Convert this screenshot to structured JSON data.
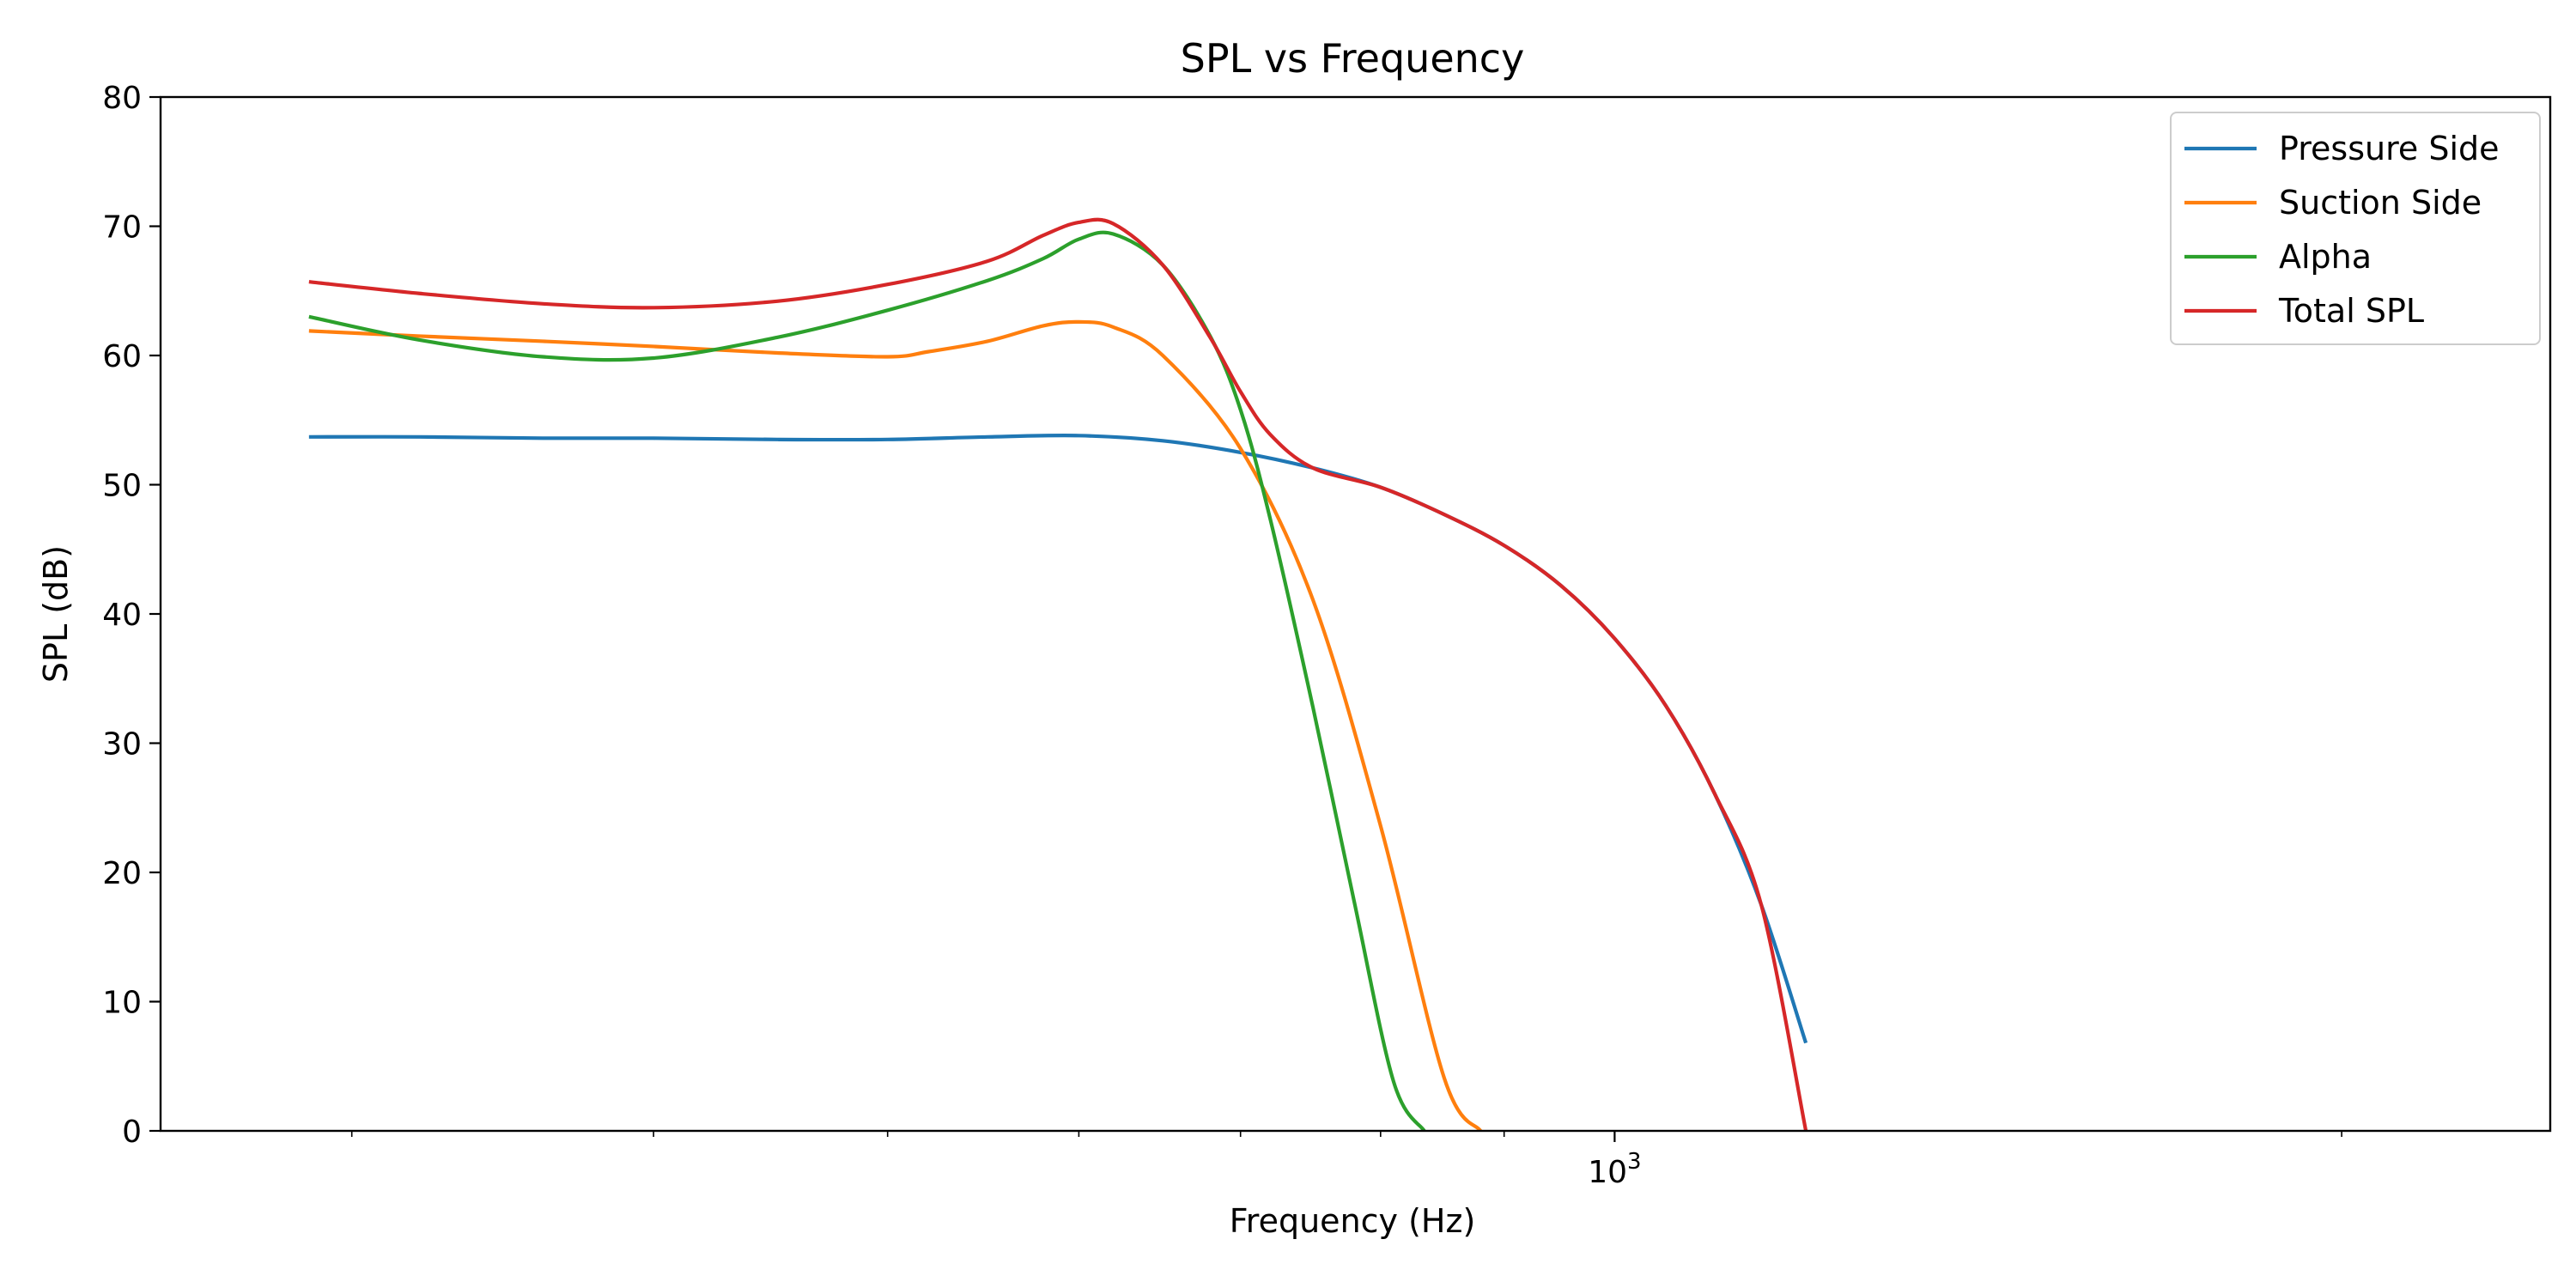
{
  "chart_data": {
    "type": "line",
    "title": "SPL vs Frequency",
    "xlabel": "Frequency (Hz)",
    "ylabel": "SPL (dB)",
    "x_scale": "log",
    "xlim": [
      250,
      2440
    ],
    "ylim": [
      0,
      80
    ],
    "grid": false,
    "legend_position": "top-right",
    "y_ticks": [
      0,
      10,
      20,
      30,
      40,
      50,
      60,
      70,
      80
    ],
    "x_tick_labels": [
      {
        "value": 1000,
        "base": "10",
        "exponent": "3"
      }
    ],
    "series": [
      {
        "name": "Pressure Side",
        "color": "#1f77b4",
        "x": [
          288,
          320,
          360,
          400,
          450,
          500,
          550,
          600,
          650,
          700,
          750,
          800,
          850,
          900,
          950,
          1000,
          1050,
          1100,
          1150,
          1200
        ],
        "values": [
          53.7,
          53.7,
          53.6,
          53.6,
          53.5,
          53.5,
          53.7,
          53.8,
          53.4,
          52.5,
          51.3,
          49.8,
          47.7,
          45.3,
          42.2,
          38.1,
          32.9,
          26.1,
          17.5,
          6.8
        ]
      },
      {
        "name": "Suction Side",
        "color": "#ff7f0e",
        "x": [
          288,
          320,
          360,
          400,
          450,
          500,
          520,
          550,
          580,
          600,
          620,
          650,
          700,
          750,
          800,
          850,
          880
        ],
        "values": [
          61.9,
          61.5,
          61.1,
          60.7,
          60.2,
          59.9,
          60.3,
          61.1,
          62.3,
          62.6,
          62.2,
          60.0,
          52.8,
          41.1,
          23.6,
          4.1,
          0
        ]
      },
      {
        "name": "Alpha",
        "color": "#2ca02c",
        "x": [
          288,
          320,
          360,
          400,
          450,
          500,
          550,
          580,
          600,
          620,
          650,
          680,
          700,
          720,
          750,
          780,
          810,
          834
        ],
        "values": [
          63.0,
          61.2,
          59.9,
          59.8,
          61.4,
          63.5,
          65.8,
          67.5,
          69.0,
          69.4,
          67.0,
          61.5,
          55.8,
          47.4,
          32.8,
          17.8,
          3.8,
          0
        ]
      },
      {
        "name": "Total SPL",
        "color": "#d62728",
        "x": [
          288,
          320,
          360,
          400,
          450,
          500,
          550,
          580,
          600,
          620,
          650,
          680,
          700,
          720,
          750,
          800,
          850,
          900,
          950,
          1000,
          1050,
          1100,
          1150,
          1200
        ],
        "values": [
          65.7,
          64.8,
          64.0,
          63.7,
          64.2,
          65.5,
          67.3,
          69.3,
          70.3,
          70.2,
          67.0,
          61.4,
          57.2,
          53.9,
          51.3,
          49.8,
          47.7,
          45.3,
          42.2,
          38.1,
          32.9,
          26.1,
          17.5,
          0
        ]
      }
    ]
  }
}
